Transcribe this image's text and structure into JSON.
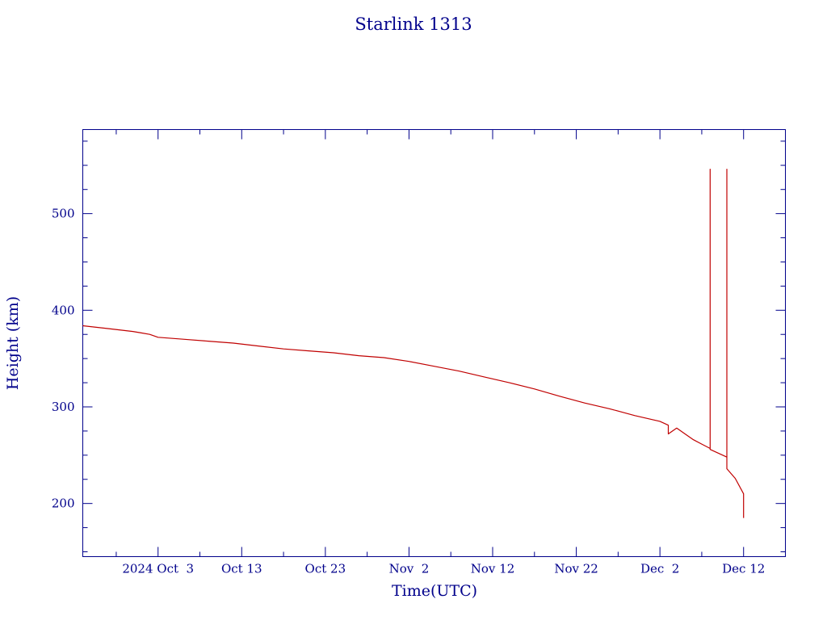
{
  "chart_data": {
    "type": "line",
    "title": "Starlink 1313",
    "xlabel": "Time(UTC)",
    "ylabel": "Height (km)",
    "x_ticks": [
      {
        "date": "2024-10-03",
        "label": "2024 Oct  3"
      },
      {
        "date": "2024-10-13",
        "label": "Oct 13"
      },
      {
        "date": "2024-10-23",
        "label": "Oct 23"
      },
      {
        "date": "2024-11-02",
        "label": "Nov  2"
      },
      {
        "date": "2024-11-12",
        "label": "Nov 12"
      },
      {
        "date": "2024-11-22",
        "label": "Nov 22"
      },
      {
        "date": "2024-12-02",
        "label": "Dec  2"
      },
      {
        "date": "2024-12-12",
        "label": "Dec 12"
      }
    ],
    "y_ticks": [
      200,
      300,
      400,
      500
    ],
    "xlim": [
      "2024-09-24",
      "2024-12-17"
    ],
    "ylim": [
      145,
      587
    ],
    "grid": false,
    "colors": {
      "axis": "#00008b",
      "series": "#c00000"
    },
    "series": [
      {
        "points": [
          [
            "2024-09-24",
            384
          ],
          [
            "2024-09-27",
            381
          ],
          [
            "2024-09-30",
            378
          ],
          [
            "2024-10-01",
            376.5
          ],
          [
            "2024-10-02",
            375
          ],
          [
            "2024-10-03",
            372
          ],
          [
            "2024-10-06",
            370
          ],
          [
            "2024-10-09",
            368
          ],
          [
            "2024-10-12",
            366
          ],
          [
            "2024-10-15",
            363
          ],
          [
            "2024-10-18",
            360
          ],
          [
            "2024-10-21",
            358
          ],
          [
            "2024-10-24",
            356
          ],
          [
            "2024-10-27",
            353
          ],
          [
            "2024-10-30",
            351
          ],
          [
            "2024-11-02",
            347
          ],
          [
            "2024-11-05",
            342
          ],
          [
            "2024-11-08",
            337
          ],
          [
            "2024-11-11",
            331
          ],
          [
            "2024-11-14",
            325
          ],
          [
            "2024-11-17",
            318.5
          ],
          [
            "2024-11-20",
            311
          ],
          [
            "2024-11-23",
            304
          ],
          [
            "2024-11-26",
            298
          ],
          [
            "2024-11-29",
            291
          ],
          [
            "2024-12-02",
            285
          ],
          [
            "2024-12-03",
            281
          ],
          [
            "2024-12-03",
            272
          ],
          [
            "2024-12-04",
            278
          ],
          [
            "2024-12-05",
            272
          ],
          [
            "2024-12-06",
            266
          ],
          [
            "2024-12-07",
            261.5
          ],
          [
            "2024-12-08",
            257
          ],
          [
            "2024-12-08",
            285
          ],
          [
            "2024-12-08",
            372
          ],
          [
            "2024-12-08",
            462
          ],
          [
            "2024-12-08",
            546
          ],
          [
            "2024-12-08",
            521
          ],
          [
            "2024-12-08",
            256
          ],
          [
            "2024-12-09",
            252
          ],
          [
            "2024-12-10",
            248
          ],
          [
            "2024-12-10",
            245
          ],
          [
            "2024-12-10",
            265
          ],
          [
            "2024-12-10",
            368
          ],
          [
            "2024-12-10",
            428
          ],
          [
            "2024-12-10",
            546
          ],
          [
            "2024-12-10",
            518
          ],
          [
            "2024-12-10",
            236
          ],
          [
            "2024-12-11",
            226
          ],
          [
            "2024-12-12",
            210
          ],
          [
            "2024-12-12",
            185
          ]
        ]
      }
    ]
  }
}
